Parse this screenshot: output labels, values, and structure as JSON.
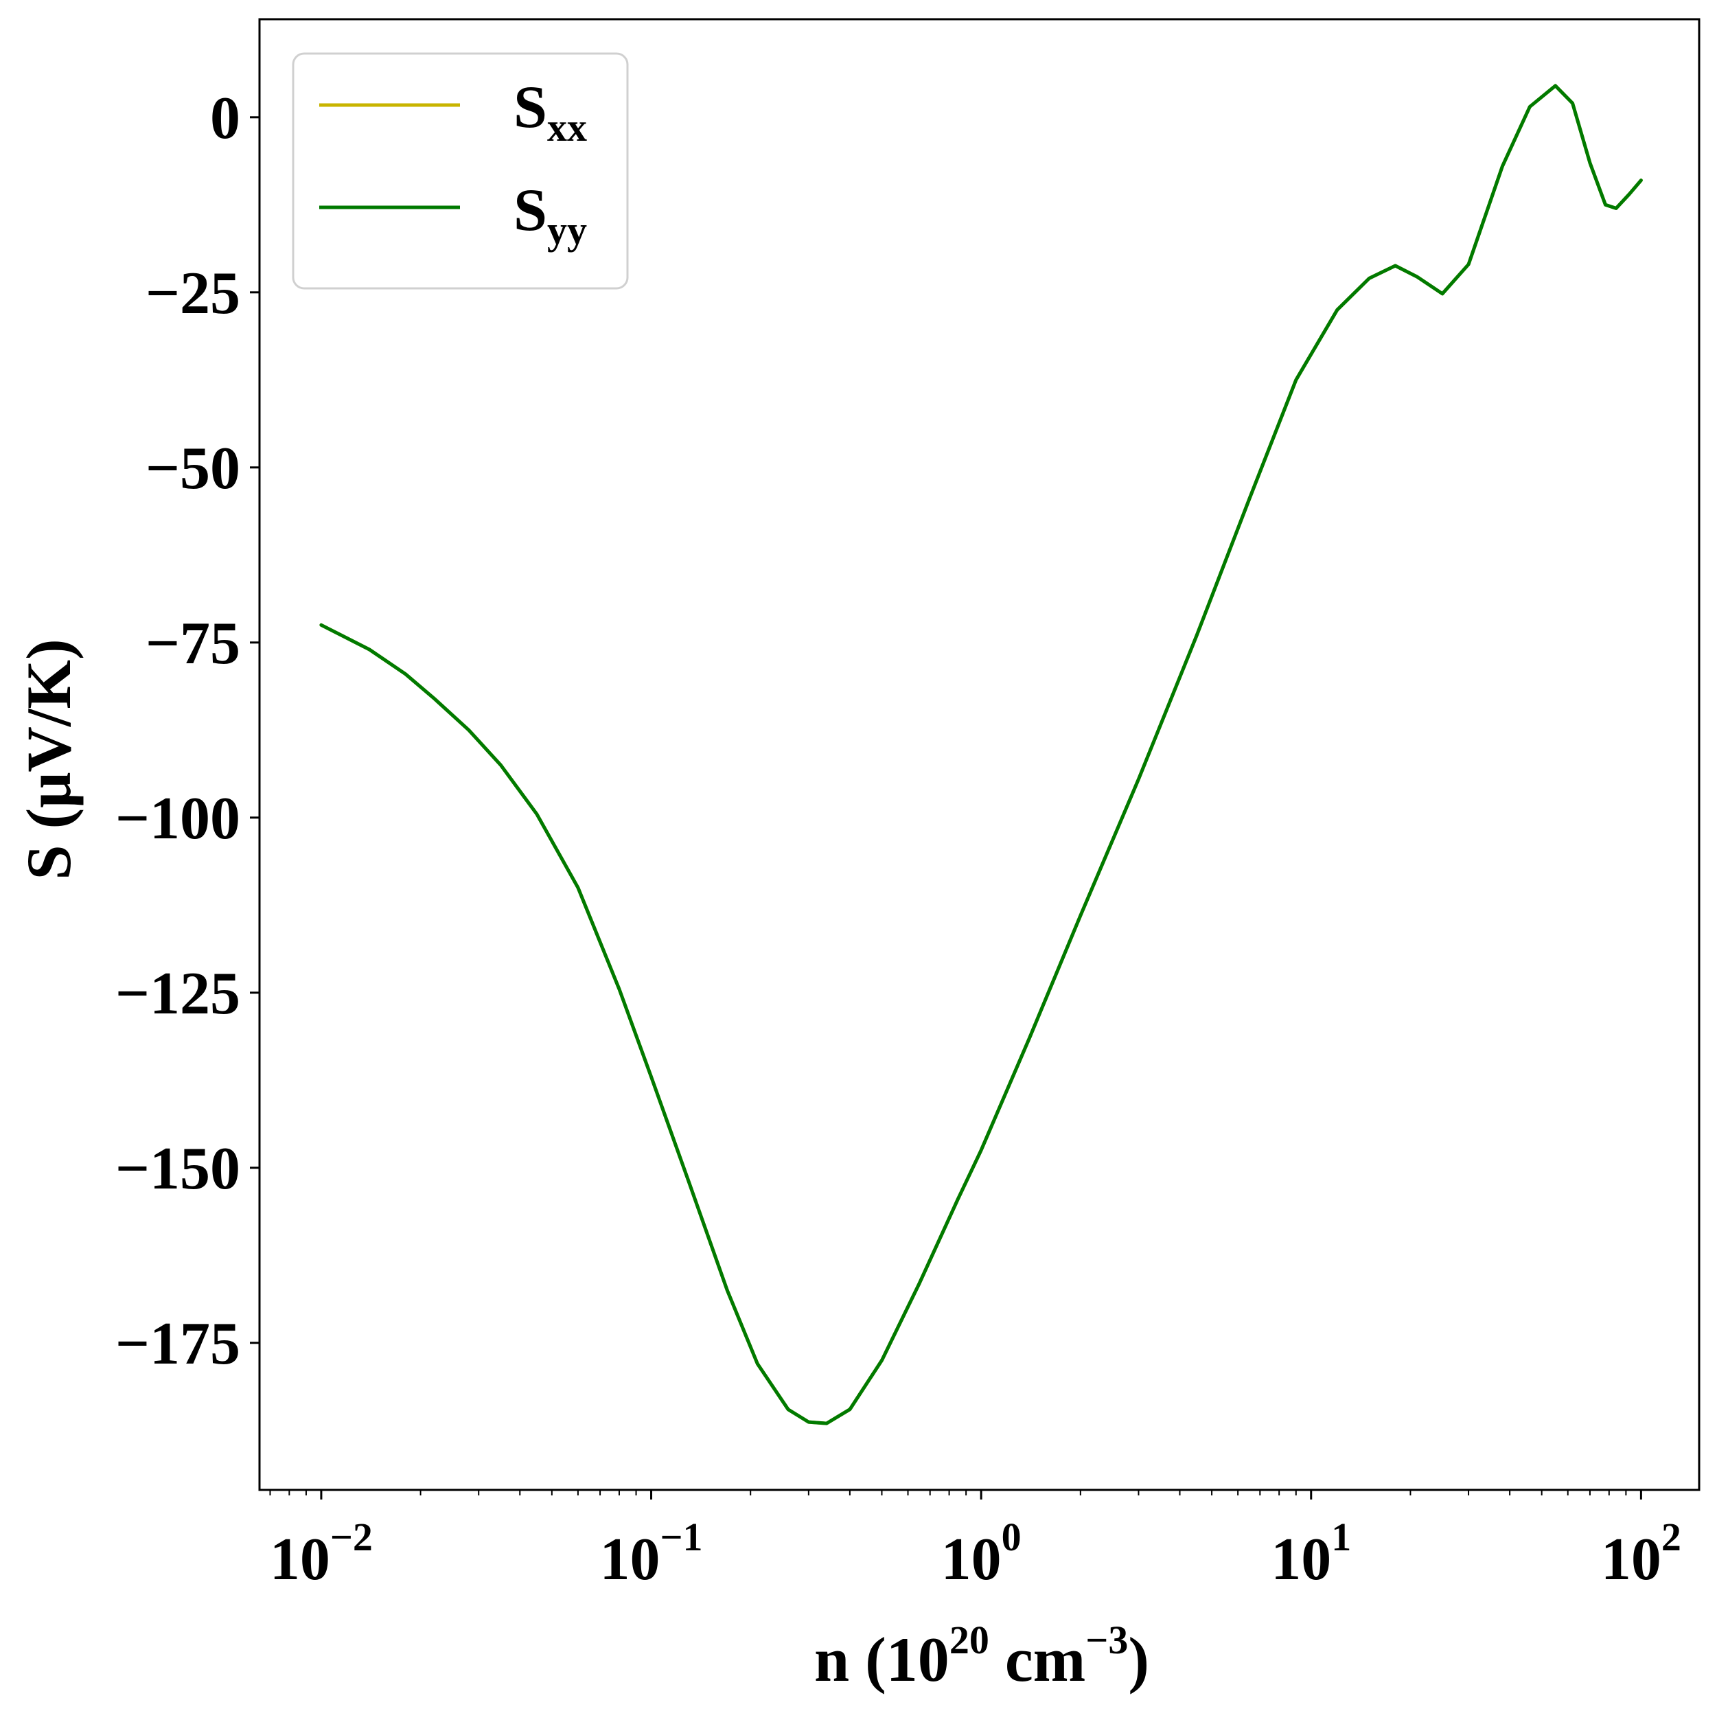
{
  "chart_data": {
    "type": "line",
    "xscale": "log",
    "xlabel": {
      "base": "n (10",
      "sup1": "20",
      "mid": " cm",
      "sup2": "−3",
      "end": ")"
    },
    "ylabel": "S (μV/K)",
    "xlim": [
      0.0065,
      150
    ],
    "ylim": [
      -196,
      14
    ],
    "x_ticks": [
      {
        "value": 0.01,
        "base": "10",
        "exp": "−2"
      },
      {
        "value": 0.1,
        "base": "10",
        "exp": "−1"
      },
      {
        "value": 1,
        "base": "10",
        "exp": "0"
      },
      {
        "value": 10,
        "base": "10",
        "exp": "1"
      },
      {
        "value": 100,
        "base": "10",
        "exp": "2"
      }
    ],
    "y_ticks": [
      {
        "value": 0,
        "label": "0"
      },
      {
        "value": -25,
        "label": "−25"
      },
      {
        "value": -50,
        "label": "−50"
      },
      {
        "value": -75,
        "label": "−75"
      },
      {
        "value": -100,
        "label": "−100"
      },
      {
        "value": -125,
        "label": "−125"
      },
      {
        "value": -150,
        "label": "−150"
      },
      {
        "value": -175,
        "label": "−175"
      }
    ],
    "legend_position": "top-left",
    "series": [
      {
        "name": "S",
        "sub": "xx",
        "color": "#c8b400",
        "x": [
          0.01,
          0.014,
          0.018,
          0.022,
          0.028,
          0.035,
          0.045,
          0.06,
          0.08,
          0.1,
          0.13,
          0.17,
          0.21,
          0.26,
          0.3,
          0.34,
          0.4,
          0.5,
          0.65,
          0.85,
          1.0,
          1.4,
          2.0,
          3.0,
          4.5,
          6.5,
          9.0,
          12.0,
          15.0,
          18.0,
          21.0,
          25.0,
          30.0,
          38.0,
          46.0,
          55.0,
          62.0,
          70.0,
          78.0,
          84.0,
          92.0,
          100.0
        ],
        "y": [
          -72.5,
          -76.0,
          -79.5,
          -83.0,
          -87.5,
          -92.5,
          -99.5,
          -110.0,
          -124.5,
          -137.0,
          -152.0,
          -167.5,
          -178.0,
          -184.5,
          -186.3,
          -186.5,
          -184.5,
          -177.5,
          -166.5,
          -154.5,
          -147.5,
          -131.5,
          -114.0,
          -94.5,
          -74.0,
          -54.5,
          -37.5,
          -27.5,
          -23.0,
          -21.2,
          -22.8,
          -25.2,
          -21.0,
          -7.0,
          1.5,
          4.5,
          2.0,
          -6.5,
          -12.5,
          -13.0,
          -11.0,
          -9.0
        ]
      },
      {
        "name": "S",
        "sub": "yy",
        "color": "#007a00",
        "x": [
          0.01,
          0.014,
          0.018,
          0.022,
          0.028,
          0.035,
          0.045,
          0.06,
          0.08,
          0.1,
          0.13,
          0.17,
          0.21,
          0.26,
          0.3,
          0.34,
          0.4,
          0.5,
          0.65,
          0.85,
          1.0,
          1.4,
          2.0,
          3.0,
          4.5,
          6.5,
          9.0,
          12.0,
          15.0,
          18.0,
          21.0,
          25.0,
          30.0,
          38.0,
          46.0,
          55.0,
          62.0,
          70.0,
          78.0,
          84.0,
          92.0,
          100.0
        ],
        "y": [
          -72.5,
          -76.0,
          -79.5,
          -83.0,
          -87.5,
          -92.5,
          -99.5,
          -110.0,
          -124.5,
          -137.0,
          -152.0,
          -167.5,
          -178.0,
          -184.5,
          -186.3,
          -186.5,
          -184.5,
          -177.5,
          -166.5,
          -154.5,
          -147.5,
          -131.5,
          -114.0,
          -94.5,
          -74.0,
          -54.5,
          -37.5,
          -27.5,
          -23.0,
          -21.2,
          -22.8,
          -25.2,
          -21.0,
          -7.0,
          1.5,
          4.5,
          2.0,
          -6.5,
          -12.5,
          -13.0,
          -11.0,
          -9.0
        ]
      }
    ]
  }
}
